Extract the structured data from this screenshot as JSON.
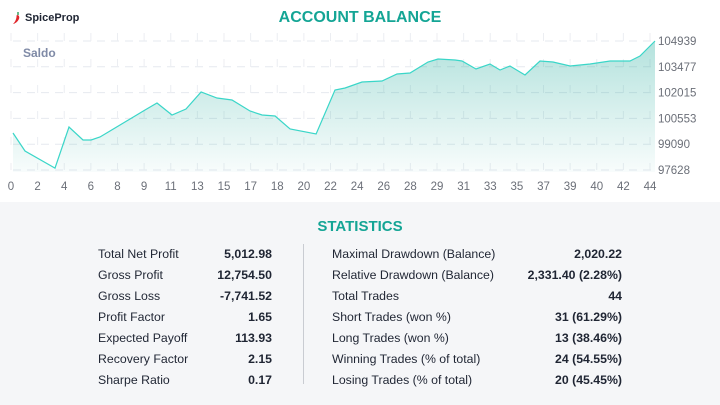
{
  "brand": {
    "name": "SpiceProp"
  },
  "title": "ACCOUNT BALANCE",
  "chart_data": {
    "type": "area",
    "title": "ACCOUNT BALANCE",
    "series_label": "Saldo",
    "line_color": "#3ad6c8",
    "fill_color": "#14a595",
    "x_tick_labels": [
      "0",
      "2",
      "4",
      "6",
      "8",
      "9",
      "11",
      "13",
      "15",
      "17",
      "18",
      "20",
      "22",
      "24",
      "26",
      "28",
      "29",
      "31",
      "33",
      "35",
      "37",
      "39",
      "40",
      "42",
      "44"
    ],
    "y_tick_labels": [
      "104939",
      "103477",
      "102015",
      "100553",
      "99090",
      "97628"
    ],
    "ylim": [
      97628,
      104939
    ],
    "xlim": [
      0,
      44
    ],
    "grid": true,
    "points": [
      [
        0,
        99723
      ],
      [
        0.82,
        98702
      ],
      [
        2.88,
        97738
      ],
      [
        3.84,
        100063
      ],
      [
        4.8,
        99326
      ],
      [
        5.35,
        99326
      ],
      [
        5.96,
        99496
      ],
      [
        7.33,
        100176
      ],
      [
        9.05,
        101027
      ],
      [
        9.87,
        101424
      ],
      [
        10.9,
        100743
      ],
      [
        11.86,
        101083
      ],
      [
        12.89,
        102047
      ],
      [
        13.98,
        101707
      ],
      [
        15.01,
        101594
      ],
      [
        16.24,
        100970
      ],
      [
        17.07,
        100743
      ],
      [
        17.96,
        100686
      ],
      [
        18.99,
        99949
      ],
      [
        20.77,
        99666
      ],
      [
        22.07,
        102161
      ],
      [
        22.76,
        102274
      ],
      [
        23.92,
        102614
      ],
      [
        25.29,
        102671
      ],
      [
        26.32,
        103068
      ],
      [
        27.21,
        103125
      ],
      [
        28.44,
        103748
      ],
      [
        29.13,
        103918
      ],
      [
        30.3,
        103862
      ],
      [
        30.77,
        103805
      ],
      [
        31.73,
        103351
      ],
      [
        32.69,
        103635
      ],
      [
        33.38,
        103295
      ],
      [
        34.06,
        103521
      ],
      [
        35.09,
        103011
      ],
      [
        36.12,
        103805
      ],
      [
        37.01,
        103748
      ],
      [
        38.18,
        103521
      ],
      [
        39.55,
        103635
      ],
      [
        40.92,
        103805
      ],
      [
        42.29,
        103805
      ],
      [
        42.97,
        104088
      ],
      [
        44,
        104939
      ]
    ]
  },
  "statistics": {
    "title": "STATISTICS",
    "left": [
      {
        "label": "Total Net Profit",
        "value": "5,012.98"
      },
      {
        "label": "Gross Profit",
        "value": "12,754.50"
      },
      {
        "label": "Gross Loss",
        "value": "-7,741.52"
      },
      {
        "label": "Profit Factor",
        "value": "1.65"
      },
      {
        "label": "Expected Payoff",
        "value": "113.93"
      },
      {
        "label": "Recovery Factor",
        "value": "2.15"
      },
      {
        "label": "Sharpe Ratio",
        "value": "0.17"
      }
    ],
    "right": [
      {
        "label": "Maximal Drawdown (Balance)",
        "value": "2,020.22"
      },
      {
        "label": "Relative Drawdown (Balance)",
        "value": "2,331.40 (2.28%)"
      },
      {
        "label": "Total Trades",
        "value": "44"
      },
      {
        "label": "Short Trades (won %)",
        "value": "31 (61.29%)"
      },
      {
        "label": "Long Trades (won %)",
        "value": "13 (38.46%)"
      },
      {
        "label": "Winning Trades (% of total)",
        "value": "24 (54.55%)"
      },
      {
        "label": "Losing Trades (% of total)",
        "value": "20 (45.45%)"
      }
    ]
  }
}
